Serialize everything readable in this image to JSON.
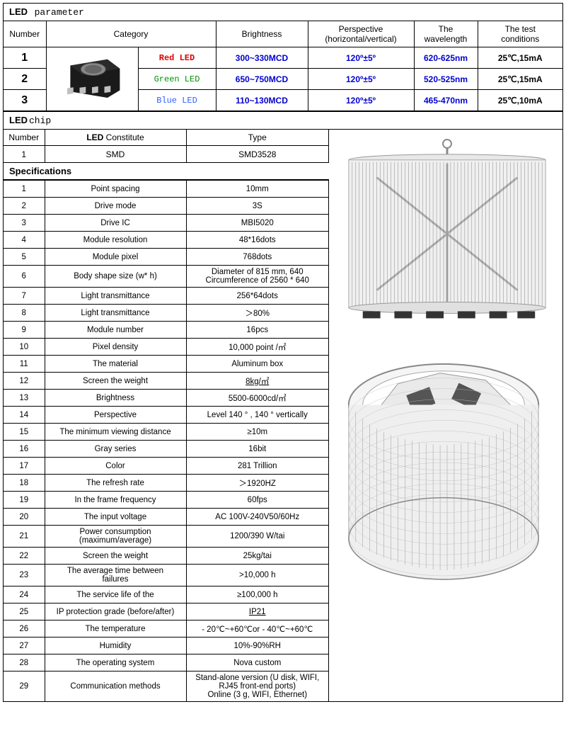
{
  "led_parameter": {
    "title_bold": "LED",
    "title_light": "parameter",
    "headers": {
      "number": "Number",
      "category": "Category",
      "brightness": "Brightness",
      "perspective_l1": "Perspective",
      "perspective_l2": "(horizontal/vertical)",
      "wavelength_l1": "The",
      "wavelength_l2": "wavelength",
      "conditions_l1": "The test",
      "conditions_l2": "conditions"
    },
    "rows": [
      {
        "num": "1",
        "category": "Red LED",
        "category_class": "red",
        "brightness": "300~330MCD",
        "perspective": "120º±5º",
        "wavelength": "620-625nm",
        "conditions": "25℃,15mA"
      },
      {
        "num": "2",
        "category": "Green LED",
        "category_class": "green",
        "brightness": "650~750MCD",
        "perspective": "120º±5º",
        "wavelength": "520-525nm",
        "conditions": "25℃,15mA"
      },
      {
        "num": "3",
        "category": "Blue LED",
        "category_class": "cblue",
        "brightness": "110~130MCD",
        "perspective": "120º±5º",
        "wavelength": "465-470nm",
        "conditions": "25℃,10mA"
      }
    ]
  },
  "led_chip": {
    "title_bold": "LED",
    "title_light": "chip",
    "headers": {
      "number": "Number",
      "constitute_pre": "LED",
      "constitute_post": " Constitute",
      "type": "Type"
    },
    "row": {
      "num": "1",
      "constitute": "SMD",
      "type": "SMD3528"
    }
  },
  "specifications": {
    "title": "Specifications",
    "rows": [
      {
        "num": "1",
        "label": "Point spacing",
        "value": "10mm"
      },
      {
        "num": "2",
        "label": "Drive mode",
        "value": "3S"
      },
      {
        "num": "3",
        "label": "Drive IC",
        "value": "MBI5020"
      },
      {
        "num": "4",
        "label": "Module resolution",
        "value": "48*16dots"
      },
      {
        "num": "5",
        "label": "Module pixel",
        "value": "768dots"
      },
      {
        "num": "6",
        "label": "Body shape size (w* h)",
        "value": "Diameter of 815 mm, 640\nCircumference of 2560 * 640"
      },
      {
        "num": "7",
        "label": "Light transmittance",
        "value": "256*64dots"
      },
      {
        "num": "8",
        "label": "Light transmittance",
        "value": "＞80%"
      },
      {
        "num": "9",
        "label": "Module number",
        "value": "16pcs"
      },
      {
        "num": "10",
        "label": "Pixel density",
        "value": "10,000 point /㎡"
      },
      {
        "num": "11",
        "label": "The material",
        "value": "Aluminum box"
      },
      {
        "num": "12",
        "label": "Screen the weight",
        "value": "8kg/㎡",
        "underline": true
      },
      {
        "num": "13",
        "label": "Brightness",
        "value": "5500-6000cd/㎡"
      },
      {
        "num": "14",
        "label": "Perspective",
        "value": "Level 140 ° , 140 °  vertically"
      },
      {
        "num": "15",
        "label": "The minimum viewing distance",
        "value": "≥10m"
      },
      {
        "num": "16",
        "label": "Gray series",
        "value": "16bit"
      },
      {
        "num": "17",
        "label": "Color",
        "value": "281 Trillion"
      },
      {
        "num": "18",
        "label": "The refresh rate",
        "value": "＞1920HZ"
      },
      {
        "num": "19",
        "label": "In the frame frequency",
        "value": "60fps"
      },
      {
        "num": "20",
        "label": "The input voltage",
        "value": "AC 100V-240V50/60Hz"
      },
      {
        "num": "21",
        "label": "Power consumption\n(maximum/average)",
        "value": "1200/390 W/tai"
      },
      {
        "num": "22",
        "label": "Screen the weight",
        "value": "25kg/tai"
      },
      {
        "num": "23",
        "label": "The average time between\nfailures",
        "value": ">10,000 h"
      },
      {
        "num": "24",
        "label": "The service life of the",
        "value": "≥100,000 h"
      },
      {
        "num": "25",
        "label": "IP protection grade (before/after)",
        "value": "IP21",
        "underline": true
      },
      {
        "num": "26",
        "label": "The temperature",
        "value": "- 20℃~+60℃or - 40℃~+60℃"
      },
      {
        "num": "27",
        "label": "Humidity",
        "value": "10%-90%RH"
      },
      {
        "num": "28",
        "label": "The operating system",
        "value": "Nova custom"
      },
      {
        "num": "29",
        "label": "Communication methods",
        "value": "Stand-alone version (U disk, WIFI,\nRJ45 front-end ports)\nOnline (3 g, WIFI, Ethernet)"
      }
    ]
  },
  "styling": {
    "border_color": "#000000",
    "red_color": "#e00000",
    "green_color": "#009000",
    "blue_text_color": "#3060ff",
    "blue_value_color": "#0000d0",
    "background": "#ffffff",
    "font_size_base": 12,
    "font_size_header": 13,
    "font_size_spec": 11.5
  }
}
